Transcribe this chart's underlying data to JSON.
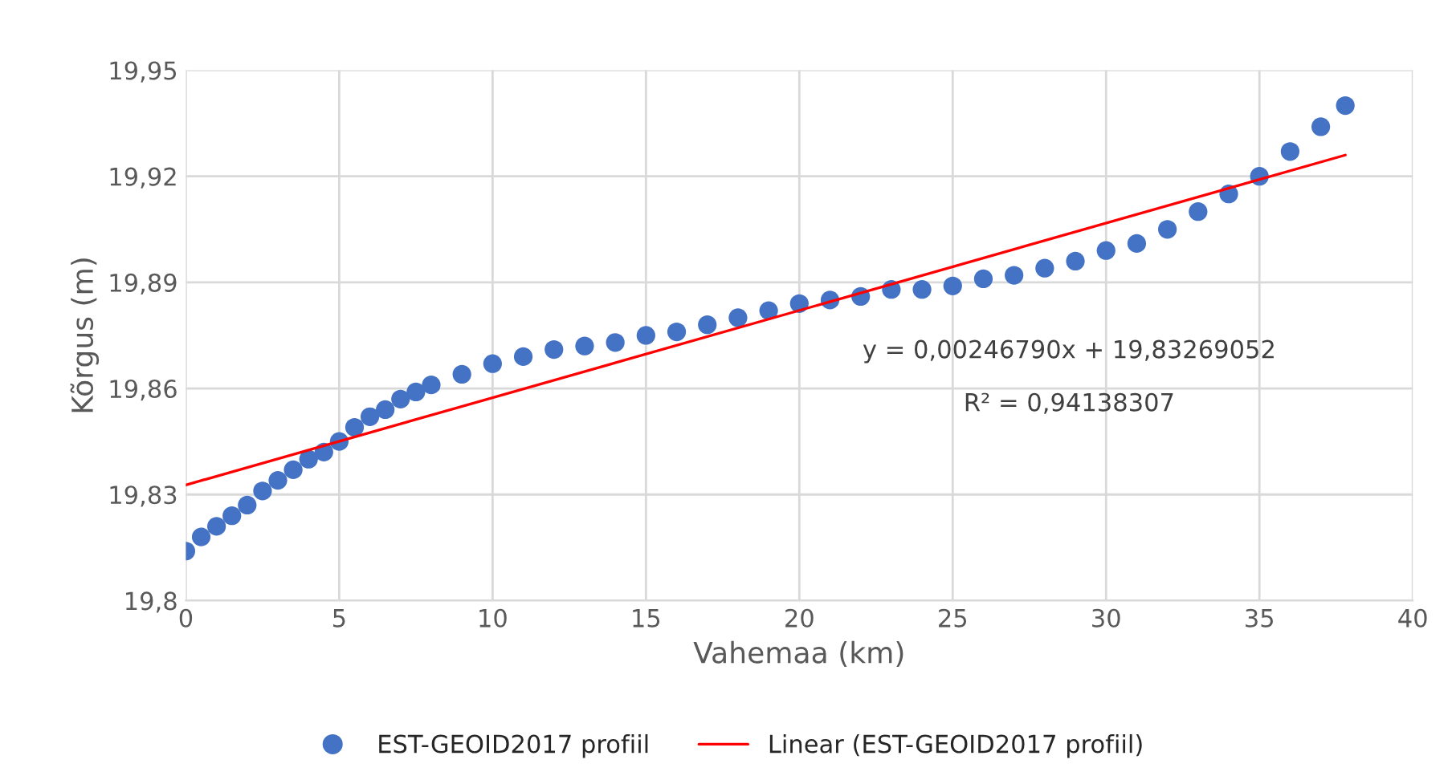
{
  "chart_data": {
    "type": "scatter",
    "xlabel": "Vahemaa (km)",
    "ylabel": "Kõrgus (m)",
    "xlim": [
      0,
      40
    ],
    "xticks": [
      0,
      5,
      10,
      15,
      20,
      25,
      30,
      35,
      40
    ],
    "ylim": [
      19.8,
      19.95
    ],
    "yticks": [
      {
        "value": 19.8,
        "label": "19,8"
      },
      {
        "value": 19.83,
        "label": "19,83"
      },
      {
        "value": 19.86,
        "label": "19,86"
      },
      {
        "value": 19.89,
        "label": "19,89"
      },
      {
        "value": 19.92,
        "label": "19,92"
      },
      {
        "value": 19.95,
        "label": "19,95"
      }
    ],
    "grid": true,
    "legend": "bottom",
    "series": [
      {
        "name": "EST-GEOID2017 profiil",
        "marker": "circle",
        "color": "#4472c4",
        "x": [
          0,
          0.5,
          1,
          1.5,
          2,
          2.5,
          3,
          3.5,
          4,
          4.5,
          5,
          5.5,
          6,
          6.5,
          7,
          7.5,
          8,
          9,
          10,
          11,
          12,
          13,
          14,
          15,
          16,
          17,
          18,
          19,
          20,
          21,
          22,
          23,
          24,
          25,
          26,
          27,
          28,
          29,
          30,
          31,
          32,
          33,
          34,
          35,
          36,
          37,
          37.8
        ],
        "values": [
          19.814,
          19.818,
          19.821,
          19.824,
          19.827,
          19.831,
          19.834,
          19.837,
          19.84,
          19.842,
          19.845,
          19.849,
          19.852,
          19.854,
          19.857,
          19.859,
          19.861,
          19.864,
          19.867,
          19.869,
          19.871,
          19.872,
          19.873,
          19.875,
          19.876,
          19.878,
          19.88,
          19.882,
          19.884,
          19.885,
          19.886,
          19.888,
          19.888,
          19.889,
          19.891,
          19.892,
          19.894,
          19.896,
          19.899,
          19.901,
          19.905,
          19.91,
          19.915,
          19.92,
          19.927,
          19.934,
          19.94
        ]
      },
      {
        "name": "Linear (EST-GEOID2017 profiil)",
        "type": "line",
        "line_style": "solid",
        "color": "#ff0000",
        "x": [
          0,
          37.8
        ],
        "values": [
          19.8327,
          19.926
        ]
      }
    ],
    "annotations": [
      "y = 0,00246790x + 19,83269052",
      "R² = 0,94138307"
    ]
  }
}
